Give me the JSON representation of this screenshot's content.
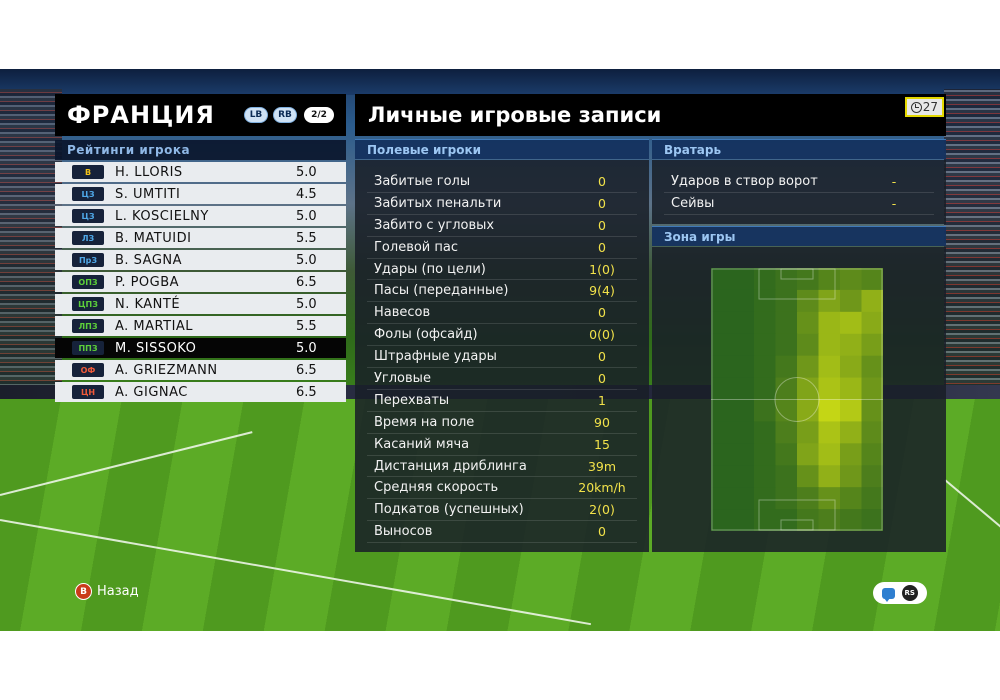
{
  "team": {
    "name": "ФРАНЦИЯ",
    "lb_label": "LB",
    "rb_label": "RB",
    "page_indicator": "2/2",
    "ratings_label": "Рейтинги игрока",
    "players": [
      {
        "pos": "В",
        "pos_color": "#f2c21a",
        "name": "H. LLORIS",
        "rating": "5.0",
        "selected": false
      },
      {
        "pos": "ЦЗ",
        "pos_color": "#4fa8e8",
        "name": "S. UMTITI",
        "rating": "4.5",
        "selected": false
      },
      {
        "pos": "ЦЗ",
        "pos_color": "#4fa8e8",
        "name": "L. KOSCIELNY",
        "rating": "5.0",
        "selected": false
      },
      {
        "pos": "ЛЗ",
        "pos_color": "#4fa8e8",
        "name": "B. MATUIDI",
        "rating": "5.5",
        "selected": false
      },
      {
        "pos": "ПрЗ",
        "pos_color": "#4fa8e8",
        "name": "B. SAGNA",
        "rating": "5.0",
        "selected": false
      },
      {
        "pos": "ОПЗ",
        "pos_color": "#5ccf3a",
        "name": "P. POGBA",
        "rating": "6.5",
        "selected": false
      },
      {
        "pos": "ЦПЗ",
        "pos_color": "#5ccf3a",
        "name": "N. KANTÉ",
        "rating": "5.0",
        "selected": false
      },
      {
        "pos": "ЛПЗ",
        "pos_color": "#5ccf3a",
        "name": "A. MARTIAL",
        "rating": "5.5",
        "selected": false
      },
      {
        "pos": "ППЗ",
        "pos_color": "#5ccf3a",
        "name": "M. SISSOKO",
        "rating": "5.0",
        "selected": true
      },
      {
        "pos": "ОФ",
        "pos_color": "#f05a3a",
        "name": "A. GRIEZMANN",
        "rating": "6.5",
        "selected": false
      },
      {
        "pos": "ЦН",
        "pos_color": "#f05a3a",
        "name": "A. GIGNAC",
        "rating": "6.5",
        "selected": false
      }
    ]
  },
  "stats": {
    "title": "Личные игровые записи",
    "timer": "27",
    "field_title": "Полевые игроки",
    "field_rows": [
      {
        "label": "Забитые голы",
        "value": "0"
      },
      {
        "label": "Забитых пенальти",
        "value": "0"
      },
      {
        "label": "Забито с угловых",
        "value": "0"
      },
      {
        "label": "Голевой пас",
        "value": "0"
      },
      {
        "label": "Удары (по цели)",
        "value": "1(0)"
      },
      {
        "label": "Пасы (переданные)",
        "value": "9(4)"
      },
      {
        "label": "Навесов",
        "value": "0"
      },
      {
        "label": "Фолы (офсайд)",
        "value": "0(0)"
      },
      {
        "label": "Штрафные удары",
        "value": "0"
      },
      {
        "label": "Угловые",
        "value": "0"
      },
      {
        "label": "Перехваты",
        "value": "1"
      },
      {
        "label": "Время на поле",
        "value": "90"
      },
      {
        "label": "Касаний мяча",
        "value": "15"
      },
      {
        "label": "Дистанция дриблинга",
        "value": "39m"
      },
      {
        "label": "Средняя скорость",
        "value": "20km/h"
      },
      {
        "label": "Подкатов (успешных)",
        "value": "2(0)"
      },
      {
        "label": "Выносов",
        "value": "0"
      }
    ],
    "gk_title": "Вратарь",
    "gk_rows": [
      {
        "label": "Ударов в створ ворот",
        "value": "-"
      },
      {
        "label": "Сейвы",
        "value": "-"
      }
    ],
    "zone_title": "Зона игры",
    "heatmap": {
      "cols": 8,
      "rows": 12,
      "intensity": [
        [
          0.05,
          0.05,
          0.1,
          0.15,
          0.2,
          0.3,
          0.35,
          0.3
        ],
        [
          0.05,
          0.05,
          0.1,
          0.15,
          0.35,
          0.55,
          0.45,
          0.65
        ],
        [
          0.05,
          0.05,
          0.1,
          0.15,
          0.4,
          0.7,
          0.75,
          0.6
        ],
        [
          0.05,
          0.05,
          0.1,
          0.15,
          0.35,
          0.7,
          0.65,
          0.5
        ],
        [
          0.05,
          0.05,
          0.1,
          0.2,
          0.45,
          0.75,
          0.6,
          0.4
        ],
        [
          0.05,
          0.05,
          0.1,
          0.25,
          0.55,
          0.8,
          0.7,
          0.45
        ],
        [
          0.05,
          0.05,
          0.15,
          0.3,
          0.6,
          0.95,
          0.85,
          0.4
        ],
        [
          0.05,
          0.05,
          0.1,
          0.25,
          0.5,
          0.8,
          0.65,
          0.35
        ],
        [
          0.05,
          0.05,
          0.1,
          0.2,
          0.55,
          0.75,
          0.5,
          0.3
        ],
        [
          0.05,
          0.05,
          0.1,
          0.15,
          0.4,
          0.65,
          0.45,
          0.25
        ],
        [
          0.05,
          0.05,
          0.1,
          0.15,
          0.25,
          0.4,
          0.3,
          0.2
        ],
        [
          0.05,
          0.05,
          0.1,
          0.1,
          0.2,
          0.25,
          0.2,
          0.15
        ]
      ]
    }
  },
  "hints": {
    "back_button": "B",
    "back_label": "Назад",
    "rs_label": "RS"
  },
  "colors": {
    "value_yellow": "#f2e24a",
    "section_blue": "#9cc6f2"
  }
}
